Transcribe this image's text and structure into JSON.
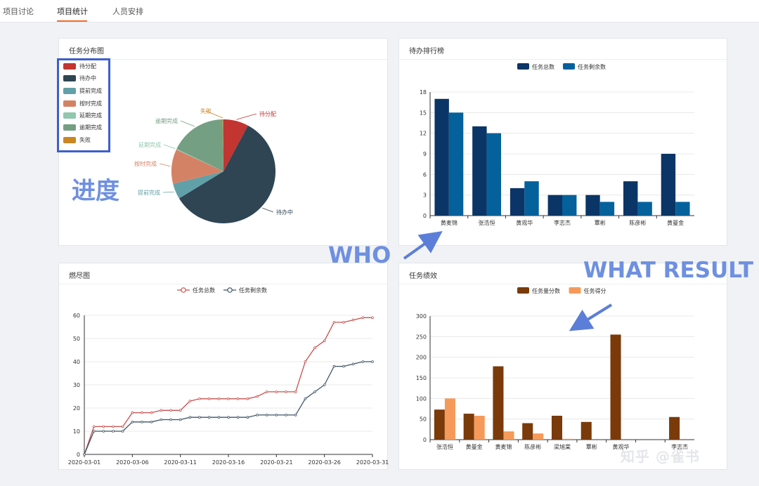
{
  "tabs": [
    {
      "label": "项目讨论"
    },
    {
      "label": "项目统计",
      "active": true
    },
    {
      "label": "人员安排"
    }
  ],
  "colors": {
    "accent": "#f26b2a",
    "annotation": "#6f90e0",
    "annotation_box": "#3d5fcc"
  },
  "annotations": {
    "progress": "进度",
    "who": "WHO",
    "what_result": "WHAT RESULT"
  },
  "watermark": "知乎 @雀书",
  "cards": {
    "task_distribution": {
      "title": "任务分布图",
      "legend": [
        {
          "label": "待分配",
          "color": "#c23531"
        },
        {
          "label": "待办中",
          "color": "#2f4554"
        },
        {
          "label": "提前完成",
          "color": "#61a0a8"
        },
        {
          "label": "按时完成",
          "color": "#d48265"
        },
        {
          "label": "延期完成",
          "color": "#91c7ae"
        },
        {
          "label": "逾期完成",
          "color": "#749f83"
        },
        {
          "label": "失败",
          "color": "#ca8622"
        }
      ],
      "slice_labels": [
        "待分配",
        "待办中",
        "提前完成",
        "按时完成",
        "延期完成",
        "逾期完成",
        "失败"
      ]
    },
    "todo_ranking": {
      "title": "待办排行榜"
    },
    "burndown": {
      "title": "燃尽图"
    },
    "performance": {
      "title": "任务绩效"
    }
  },
  "chart_data": [
    {
      "type": "pie",
      "title": "任务分布图",
      "categories": [
        "待分配",
        "待办中",
        "提前完成",
        "按时完成",
        "延期完成",
        "逾期完成",
        "失败"
      ],
      "values": [
        8,
        60,
        5,
        11,
        0.3,
        18,
        0.3
      ],
      "colors": [
        "#c23531",
        "#2f4554",
        "#61a0a8",
        "#d48265",
        "#91c7ae",
        "#749f83",
        "#ca8622"
      ]
    },
    {
      "type": "bar",
      "title": "待办排行榜",
      "categories": [
        "黄麦锦",
        "张浩恒",
        "黄观华",
        "李志杰",
        "覃彬",
        "陈彦彬",
        "黄曼金"
      ],
      "series": [
        {
          "name": "任务总数",
          "values": [
            17,
            13,
            4,
            3,
            3,
            5,
            9
          ],
          "color": "#0b3566"
        },
        {
          "name": "任务剩余数",
          "values": [
            15,
            12,
            5,
            3,
            2,
            2,
            2
          ],
          "color": "#04619b"
        }
      ],
      "ylim": [
        0,
        18
      ],
      "yticks": [
        0,
        3,
        6,
        9,
        12,
        15,
        18
      ],
      "legend_position": "top-center",
      "grid": true
    },
    {
      "type": "line",
      "title": "燃尽图",
      "x": [
        "2020-03-01",
        "2020-03-02",
        "2020-03-03",
        "2020-03-04",
        "2020-03-05",
        "2020-03-06",
        "2020-03-07",
        "2020-03-08",
        "2020-03-09",
        "2020-03-10",
        "2020-03-11",
        "2020-03-12",
        "2020-03-13",
        "2020-03-14",
        "2020-03-15",
        "2020-03-16",
        "2020-03-17",
        "2020-03-18",
        "2020-03-19",
        "2020-03-20",
        "2020-03-21",
        "2020-03-22",
        "2020-03-23",
        "2020-03-24",
        "2020-03-25",
        "2020-03-26",
        "2020-03-27",
        "2020-03-28",
        "2020-03-29",
        "2020-03-30",
        "2020-03-31"
      ],
      "xticks": [
        "2020-03-01",
        "2020-03-06",
        "2020-03-11",
        "2020-03-16",
        "2020-03-21",
        "2020-03-26",
        "2020-03-31"
      ],
      "series": [
        {
          "name": "任务总数",
          "color": "#c9504e",
          "values": [
            0,
            12,
            12,
            12,
            12,
            18,
            18,
            18,
            19,
            19,
            19,
            23,
            24,
            24,
            24,
            24,
            24,
            24,
            25,
            27,
            27,
            27,
            27,
            40,
            46,
            49,
            57,
            57,
            58,
            59,
            59
          ]
        },
        {
          "name": "任务剩余数",
          "color": "#3f5468",
          "values": [
            0,
            10,
            10,
            10,
            10,
            14,
            14,
            14,
            15,
            15,
            15,
            16,
            16,
            16,
            16,
            16,
            16,
            16,
            17,
            17,
            17,
            17,
            17,
            24,
            27,
            30,
            38,
            38,
            39,
            40,
            40
          ]
        }
      ],
      "ylim": [
        0,
        60
      ],
      "yticks": [
        0,
        10,
        20,
        30,
        40,
        50,
        60
      ],
      "legend_position": "top-center",
      "grid": true
    },
    {
      "type": "bar",
      "title": "任务绩效",
      "categories": [
        "张浩恒",
        "黄曼金",
        "黄麦锦",
        "陈彦彬",
        "梁旭棠",
        "覃彬",
        "黄观华",
        "李志杰",
        "李志杰"
      ],
      "category_labels_shown": [
        "张浩恒",
        "黄曼金",
        "黄麦锦",
        "陈彦彬",
        "梁旭棠",
        "覃彬",
        "黄观华",
        "",
        "李志杰"
      ],
      "series": [
        {
          "name": "任务量分数",
          "values": [
            73,
            63,
            178,
            40,
            58,
            43,
            255,
            0,
            55
          ],
          "color": "#7a3a0a"
        },
        {
          "name": "任务得分",
          "values": [
            100,
            58,
            20,
            15,
            2,
            0,
            0,
            0,
            0
          ],
          "color": "#f59a5a"
        }
      ],
      "ylim": [
        0,
        300
      ],
      "yticks": [
        0,
        50,
        100,
        150,
        200,
        250,
        300
      ],
      "legend_position": "top-center",
      "grid": true
    }
  ]
}
